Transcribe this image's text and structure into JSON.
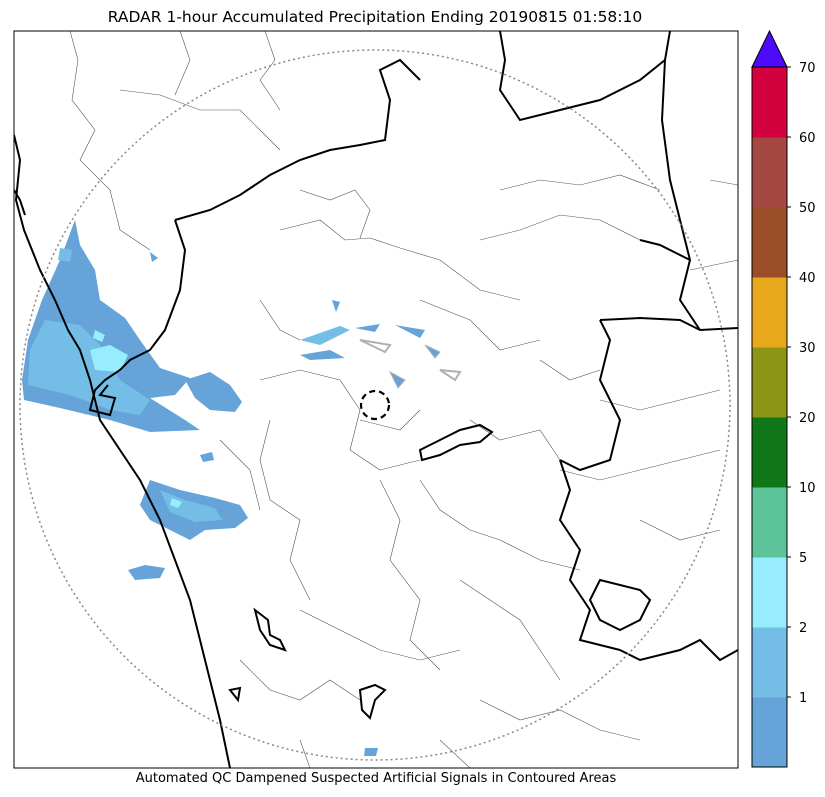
{
  "title": "RADAR 1-hour Accumulated Precipitation Ending 20190815 01:58:10",
  "footer": "Automated QC Dampened Suspected Artificial Signals in Contoured Areas",
  "colorbar": {
    "levels": [
      "",
      "1",
      "2",
      "5",
      "10",
      "20",
      "30",
      "40",
      "50",
      "60",
      "70"
    ],
    "colors": [
      "#65a3d8",
      "#74bde6",
      "#97ecfe",
      "#5dc49a",
      "#107719",
      "#8b9619",
      "#e8a81b",
      "#9b4e27",
      "#a54842",
      "#d3023f"
    ],
    "extend_color": "#4e0afa"
  },
  "colors": {
    "rain_light": "#65a3d8",
    "rain_medium": "#74bde6",
    "rain_heavy": "#97ecfe",
    "qc_gray": "#b0b0b0",
    "border_major": "#000000",
    "border_minor": "#555555",
    "range_ring": "#888888"
  }
}
